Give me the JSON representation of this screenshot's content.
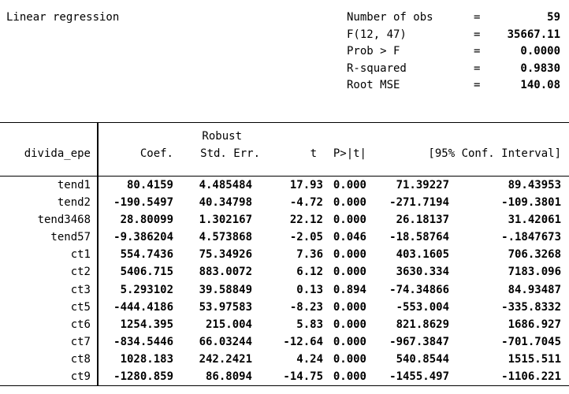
{
  "title": "Linear regression",
  "stats": [
    {
      "label": "Number of obs",
      "eq": "=",
      "value": "59"
    },
    {
      "label": "F(12, 47)",
      "eq": "=",
      "value": "35667.11"
    },
    {
      "label": "Prob > F",
      "eq": "=",
      "value": "0.0000"
    },
    {
      "label": "R-squared",
      "eq": "=",
      "value": "0.9830"
    },
    {
      "label": "Root MSE",
      "eq": "=",
      "value": "140.08"
    }
  ],
  "table": {
    "dependent_variable": "divida_epe",
    "header_overline": "Robust",
    "columns": {
      "coef": "Coef.",
      "std_err": "Std. Err.",
      "t": "t",
      "p": "P>|t|",
      "ci": "[95% Conf. Interval]"
    },
    "rows": [
      {
        "name": "tend1",
        "coef": "80.4159",
        "se": "4.485484",
        "t": "17.93",
        "p": "0.000",
        "ci_low": "71.39227",
        "ci_high": "89.43953"
      },
      {
        "name": "tend2",
        "coef": "-190.5497",
        "se": "40.34798",
        "t": "-4.72",
        "p": "0.000",
        "ci_low": "-271.7194",
        "ci_high": "-109.3801"
      },
      {
        "name": "tend3468",
        "coef": "28.80099",
        "se": "1.302167",
        "t": "22.12",
        "p": "0.000",
        "ci_low": "26.18137",
        "ci_high": "31.42061"
      },
      {
        "name": "tend57",
        "coef": "-9.386204",
        "se": "4.573868",
        "t": "-2.05",
        "p": "0.046",
        "ci_low": "-18.58764",
        "ci_high": "-.1847673"
      },
      {
        "name": "ct1",
        "coef": "554.7436",
        "se": "75.34926",
        "t": "7.36",
        "p": "0.000",
        "ci_low": "403.1605",
        "ci_high": "706.3268"
      },
      {
        "name": "ct2",
        "coef": "5406.715",
        "se": "883.0072",
        "t": "6.12",
        "p": "0.000",
        "ci_low": "3630.334",
        "ci_high": "7183.096"
      },
      {
        "name": "ct3",
        "coef": "5.293102",
        "se": "39.58849",
        "t": "0.13",
        "p": "0.894",
        "ci_low": "-74.34866",
        "ci_high": "84.93487"
      },
      {
        "name": "ct5",
        "coef": "-444.4186",
        "se": "53.97583",
        "t": "-8.23",
        "p": "0.000",
        "ci_low": "-553.004",
        "ci_high": "-335.8332"
      },
      {
        "name": "ct6",
        "coef": "1254.395",
        "se": "215.004",
        "t": "5.83",
        "p": "0.000",
        "ci_low": "821.8629",
        "ci_high": "1686.927"
      },
      {
        "name": "ct7",
        "coef": "-834.5446",
        "se": "66.03244",
        "t": "-12.64",
        "p": "0.000",
        "ci_low": "-967.3847",
        "ci_high": "-701.7045"
      },
      {
        "name": "ct8",
        "coef": "1028.183",
        "se": "242.2421",
        "t": "4.24",
        "p": "0.000",
        "ci_low": "540.8544",
        "ci_high": "1515.511"
      },
      {
        "name": "ct9",
        "coef": "-1280.859",
        "se": "86.8094",
        "t": "-14.75",
        "p": "0.000",
        "ci_low": "-1455.497",
        "ci_high": "-1106.221"
      }
    ]
  },
  "colors": {
    "text": "#000000",
    "background": "#ffffff",
    "rule": "#000000"
  }
}
